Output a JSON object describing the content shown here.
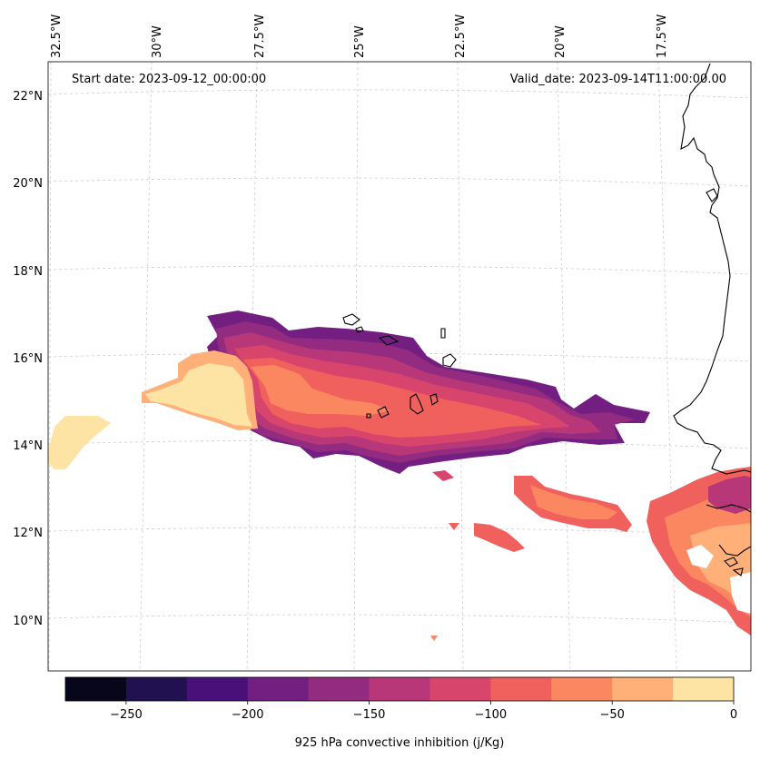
{
  "map": {
    "start_label": "Start date: 2023-09-12_00:00:00",
    "valid_label": "Valid_date: 2023-09-14T11:00:00.00",
    "lon_ticks": [
      {
        "value": -32.5,
        "label": "32.5°W"
      },
      {
        "value": -30.0,
        "label": "30°W"
      },
      {
        "value": -27.5,
        "label": "27.5°W"
      },
      {
        "value": -25.0,
        "label": "25°W"
      },
      {
        "value": -22.5,
        "label": "22.5°W"
      },
      {
        "value": -20.0,
        "label": "20°W"
      },
      {
        "value": -17.5,
        "label": "17.5°W"
      }
    ],
    "lat_ticks": [
      {
        "value": 22,
        "label": "22°N"
      },
      {
        "value": 20,
        "label": "20°N"
      },
      {
        "value": 18,
        "label": "18°N"
      },
      {
        "value": 16,
        "label": "16°N"
      },
      {
        "value": 14,
        "label": "14°N"
      },
      {
        "value": 12,
        "label": "12°N"
      },
      {
        "value": 10,
        "label": "10°N"
      }
    ],
    "colorbar": {
      "label": "925 hPa convective inhibition (j/Kg)",
      "levels": [
        -275,
        -250,
        -225,
        -200,
        -175,
        -150,
        -125,
        -100,
        -75,
        -50,
        -25,
        0
      ],
      "tick_values": [
        -250,
        -200,
        -150,
        -100,
        -50,
        0
      ],
      "tick_labels": [
        "−250",
        "−200",
        "−150",
        "−100",
        "−50",
        "0"
      ],
      "colors": [
        "#07061a",
        "#221150",
        "#4a1079",
        "#721f81",
        "#932b80",
        "#b73779",
        "#d8456c",
        "#f0605d",
        "#fb8761",
        "#feb078",
        "#fde4a4"
      ]
    },
    "colormap": "magma"
  }
}
